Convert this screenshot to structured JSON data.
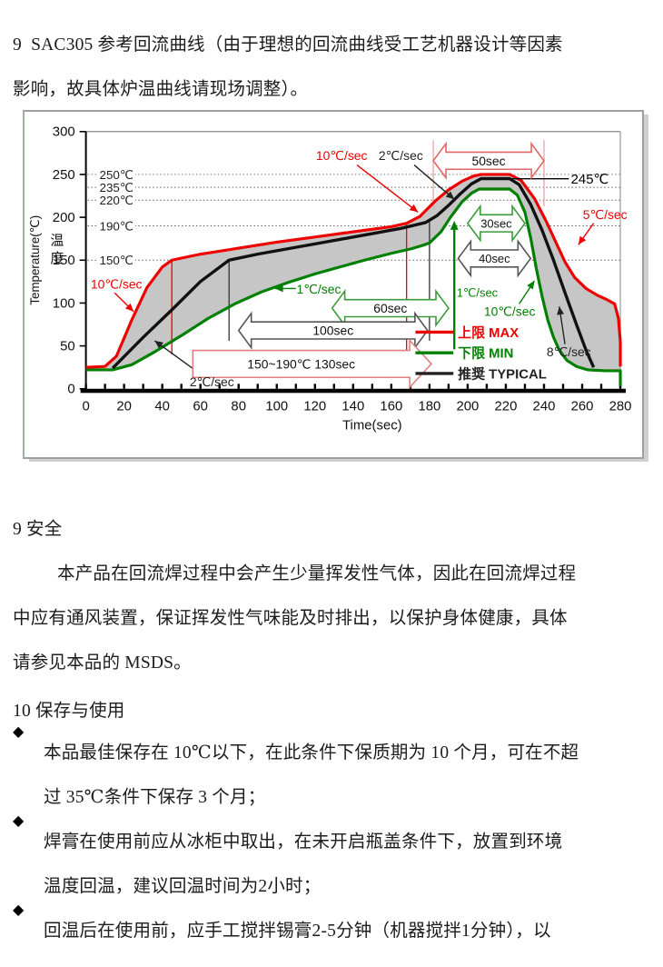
{
  "doc": {
    "title_lines": [
      "9  SAC305 参考回流曲线（由于理想的回流曲线受工艺机器设计等因素",
      "影响，故具体炉温曲线请现场调整）。"
    ],
    "safety": {
      "heading": "9 安全",
      "lines": [
        "本产品在回流焊过程中会产生少量挥发性气体，因此在回流焊过程",
        "中应有通风装置，保证挥发性气味能及时排出，以保护身体健康，具体",
        "请参见本品的 MSDS。"
      ]
    },
    "storage": {
      "heading": "10 保存与使用",
      "bullet_glyph": "◆",
      "bullets": [
        {
          "lines": [
            "本品最佳保存在 10℃以下，在此条件下保质期为 10 个月，可在不超",
            "过 35℃条件下保存 3 个月；"
          ]
        },
        {
          "lines": [
            "焊膏在使用前应从冰柜中取出，在未开启瓶盖条件下，放置到环境",
            "温度回温，建议回温时间为2小时；"
          ]
        },
        {
          "lines": [
            "回温后在使用前，应手工搅拌锡膏2-5分钟（机器搅拌1分钟），以"
          ]
        }
      ]
    }
  },
  "chart_data": {
    "type": "line",
    "xlabel": "Time(sec)",
    "ylabel": "Temperature(℃)",
    "ylabel_cn": "温度",
    "xlim": [
      0,
      280
    ],
    "ylim": [
      0,
      300
    ],
    "x_ticks": [
      0,
      20,
      40,
      60,
      80,
      100,
      120,
      140,
      160,
      180,
      200,
      220,
      240,
      260,
      280
    ],
    "x_minor_step": 10,
    "y_ticks": [
      0,
      50,
      100,
      150,
      200,
      250,
      300
    ],
    "ref_lines": [
      {
        "T": 250,
        "label": "250℃"
      },
      {
        "T": 235,
        "label": "235℃"
      },
      {
        "T": 220,
        "label": "220℃"
      },
      {
        "T": 190,
        "label": "190℃"
      },
      {
        "T": 150,
        "label": "150℃"
      }
    ],
    "fill_between_color": "#c6c6c6",
    "series": [
      {
        "name": "上限 MAX",
        "color": "#ee0000",
        "width": 3.2,
        "points": [
          [
            0,
            25
          ],
          [
            10,
            26
          ],
          [
            16,
            38
          ],
          [
            24,
            80
          ],
          [
            32,
            118
          ],
          [
            40,
            142
          ],
          [
            45,
            150
          ],
          [
            60,
            157
          ],
          [
            80,
            164
          ],
          [
            100,
            171
          ],
          [
            120,
            177
          ],
          [
            140,
            183
          ],
          [
            160,
            189
          ],
          [
            168,
            193
          ],
          [
            175,
            201
          ],
          [
            183,
            219
          ],
          [
            190,
            232
          ],
          [
            197,
            242
          ],
          [
            203,
            248
          ],
          [
            207,
            250
          ],
          [
            222,
            250
          ],
          [
            228,
            243
          ],
          [
            235,
            222
          ],
          [
            241,
            196
          ],
          [
            246,
            172
          ],
          [
            251,
            148
          ],
          [
            256,
            130
          ],
          [
            262,
            117
          ],
          [
            268,
            109
          ],
          [
            273,
            104
          ],
          [
            277,
            99
          ],
          [
            279,
            82
          ],
          [
            280,
            55
          ],
          [
            280,
            26
          ]
        ]
      },
      {
        "name": "下限 MIN",
        "color": "#008000",
        "width": 3.2,
        "points": [
          [
            0,
            22
          ],
          [
            14,
            22
          ],
          [
            24,
            28
          ],
          [
            36,
            43
          ],
          [
            50,
            62
          ],
          [
            64,
            82
          ],
          [
            78,
            99
          ],
          [
            92,
            113
          ],
          [
            106,
            124
          ],
          [
            120,
            134
          ],
          [
            133,
            142
          ],
          [
            146,
            150
          ],
          [
            160,
            158
          ],
          [
            170,
            163
          ],
          [
            176,
            167
          ],
          [
            180,
            170
          ],
          [
            186,
            183
          ],
          [
            191,
            200
          ],
          [
            197,
            218
          ],
          [
            202,
            228
          ],
          [
            206,
            233
          ],
          [
            222,
            233
          ],
          [
            226,
            226
          ],
          [
            230,
            206
          ],
          [
            233,
            176
          ],
          [
            236,
            140
          ],
          [
            239,
            108
          ],
          [
            242,
            80
          ],
          [
            245,
            60
          ],
          [
            248,
            45
          ],
          [
            252,
            33
          ],
          [
            257,
            26
          ],
          [
            263,
            22
          ],
          [
            272,
            21
          ],
          [
            280,
            21
          ],
          [
            280,
            3
          ]
        ]
      },
      {
        "name": "推奨 TYPICAL",
        "color": "#111111",
        "width": 3.4,
        "points": [
          [
            14,
            24
          ],
          [
            30,
            60
          ],
          [
            45,
            92
          ],
          [
            60,
            125
          ],
          [
            75,
            150
          ],
          [
            90,
            157
          ],
          [
            105,
            163
          ],
          [
            120,
            169
          ],
          [
            135,
            175
          ],
          [
            150,
            181
          ],
          [
            165,
            187
          ],
          [
            178,
            194
          ],
          [
            184,
            202
          ],
          [
            190,
            214
          ],
          [
            196,
            227
          ],
          [
            202,
            239
          ],
          [
            207,
            245
          ],
          [
            222,
            245
          ],
          [
            227,
            238
          ],
          [
            233,
            215
          ],
          [
            239,
            185
          ],
          [
            245,
            150
          ],
          [
            251,
            112
          ],
          [
            257,
            75
          ],
          [
            262,
            45
          ],
          [
            266,
            25
          ]
        ]
      }
    ],
    "legend": [
      {
        "label": "上限 MAX",
        "color": "#ee0000"
      },
      {
        "label": "下限 MIN",
        "color": "#008000"
      },
      {
        "label": "推奨 TYPICAL",
        "color": "#222222"
      }
    ],
    "annotations": {
      "labels": [
        {
          "text": "10℃/sec",
          "color": "#ee0000",
          "t": 134,
          "T": 272,
          "fs": 14
        },
        {
          "text": "2℃/sec",
          "color": "#222222",
          "t": 165,
          "T": 272,
          "fs": 14
        },
        {
          "text": "245℃",
          "color": "#000000",
          "t": 264,
          "T": 245,
          "fs": 15
        },
        {
          "text": "5℃/sec",
          "color": "#ee0000",
          "t": 272,
          "T": 203,
          "fs": 14
        },
        {
          "text": "10℃/sec",
          "color": "#ee0000",
          "t": 16,
          "T": 122,
          "fs": 14
        },
        {
          "text": "1℃/sec",
          "color": "#008000",
          "t": 122,
          "T": 116,
          "fs": 14
        },
        {
          "text": "1℃/sec",
          "color": "#008000",
          "t": 205,
          "T": 112,
          "fs": 13
        },
        {
          "text": "10℃/sec",
          "color": "#008000",
          "t": 222,
          "T": 90,
          "fs": 14
        },
        {
          "text": "8℃/sec",
          "color": "#222222",
          "t": 253,
          "T": 43,
          "fs": 14
        },
        {
          "text": "2℃/sec",
          "color": "#222222",
          "t": 66,
          "T": 8,
          "fs": 14
        }
      ],
      "dbl_arrows": [
        {
          "label": "50sec",
          "t1": 182,
          "t2": 240,
          "T": 266,
          "color": "#e06666",
          "fs": 14
        },
        {
          "label": "30sec",
          "t1": 200,
          "t2": 230,
          "T": 193,
          "color": "#3a9a3a",
          "fs": 13
        },
        {
          "label": "40sec",
          "t1": 195,
          "t2": 233,
          "T": 152,
          "color": "#555555",
          "fs": 13
        },
        {
          "label": "60sec",
          "t1": 129,
          "t2": 190,
          "T": 94,
          "color": "#3a9a3a",
          "fs": 14
        },
        {
          "label": "100sec",
          "t1": 80,
          "t2": 179,
          "T": 68,
          "color": "#555555",
          "fs": 14
        }
      ],
      "big_arrow": {
        "label": "150~190℃  130sec",
        "t1": 56,
        "t2": 181,
        "T": 29,
        "color": "#e08080",
        "fs": 14
      },
      "vlines": [
        {
          "t": 45,
          "T1": 150,
          "T2": 40,
          "color": "#ee0000"
        },
        {
          "t": 75,
          "T1": 150,
          "T2": 56,
          "color": "#333333"
        },
        {
          "t": 168,
          "T1": 193,
          "T2": 36,
          "color": "#ee0000"
        },
        {
          "t": 180,
          "T1": 196,
          "T2": 56,
          "color": "#333333"
        },
        {
          "t": 182,
          "T1": 290,
          "T2": 210,
          "color": "#eda0a0"
        },
        {
          "t": 240,
          "T1": 290,
          "T2": 213,
          "color": "#eda0a0"
        }
      ],
      "up_arrow": {
        "t": 193,
        "T1": 46,
        "T2": 196,
        "color": "#008000"
      },
      "leaders": [
        {
          "from": [
            142,
            261
          ],
          "to": [
            174,
            206
          ],
          "color": "#ee0000",
          "head": true
        },
        {
          "from": [
            172,
            261
          ],
          "to": [
            193,
            221
          ],
          "color": "#222222",
          "head": true
        },
        {
          "from": [
            266,
            193
          ],
          "to": [
            258,
            168
          ],
          "color": "#ee0000",
          "head": true
        },
        {
          "from": [
            15,
            112
          ],
          "to": [
            25,
            90
          ],
          "color": "#ee0000",
          "head": true
        },
        {
          "from": [
            110,
            117
          ],
          "to": [
            99,
            117
          ],
          "color": "#008000",
          "head": true
        },
        {
          "from": [
            62,
            14
          ],
          "to": [
            36,
            56
          ],
          "color": "#222222",
          "head": true
        },
        {
          "from": [
            227,
            99
          ],
          "to": [
            235,
            126
          ],
          "color": "#008000",
          "head": true
        },
        {
          "from": [
            251,
            52
          ],
          "to": [
            248,
            96
          ],
          "color": "#222222",
          "head": true
        },
        {
          "from": [
            222,
            245
          ],
          "to": [
            253,
            245
          ],
          "color": "#000000",
          "head": false
        }
      ]
    }
  }
}
